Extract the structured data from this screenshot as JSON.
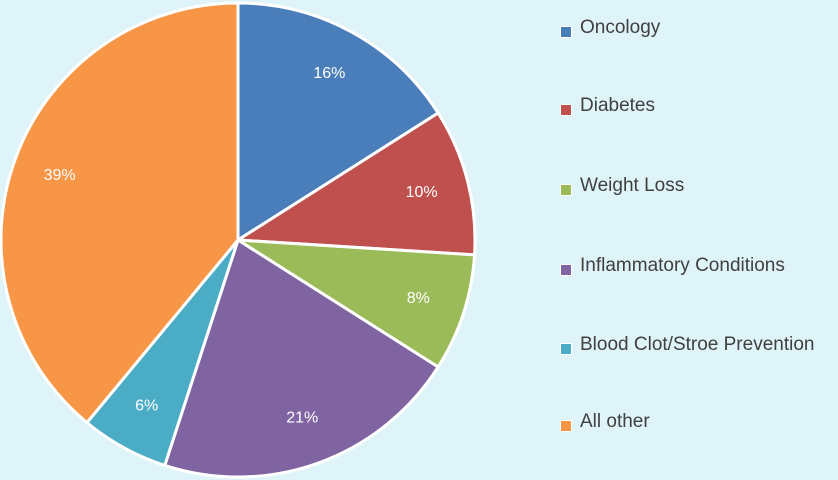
{
  "chart_data": {
    "type": "pie",
    "categories": [
      "Oncology",
      "Diabetes",
      "Weight Loss",
      "Inflammatory Conditions",
      "Blood Clot/Stroe Prevention",
      "All other"
    ],
    "values": [
      16,
      10,
      8,
      21,
      6,
      39
    ],
    "value_labels": [
      "16%",
      "10%",
      "8%",
      "21%",
      "6%",
      "39%"
    ],
    "colors": [
      "#4a7ebb",
      "#c0504d",
      "#9bbb59",
      "#8064a2",
      "#4bacc6",
      "#f79646"
    ],
    "legend": "right"
  }
}
